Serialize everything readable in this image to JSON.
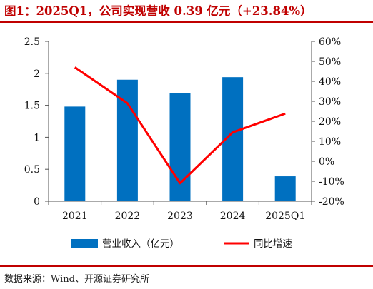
{
  "figure_title": "图1：2025Q1，公司实现营收 0.39 亿元（+23.84%）",
  "source_note": "数据来源：Wind、开源证券研究所",
  "colors": {
    "accent": "#c00000",
    "bar": "#0070c0",
    "line": "#ff0000"
  },
  "chart_data": {
    "type": "bar",
    "categories": [
      "2021",
      "2022",
      "2023",
      "2024",
      "2025Q1"
    ],
    "series": [
      {
        "name": "营业收入（亿元）",
        "type": "bar",
        "axis": "left",
        "values": [
          1.48,
          1.9,
          1.69,
          1.94,
          0.39
        ]
      },
      {
        "name": "同比增速",
        "type": "line",
        "axis": "right",
        "unit": "%",
        "values": [
          47.0,
          29.0,
          -11.0,
          14.5,
          23.84
        ]
      }
    ],
    "y_left": {
      "range": [
        0,
        2.5
      ],
      "ticks": [
        "0",
        "0.5",
        "1",
        "1.5",
        "2",
        "2.5"
      ]
    },
    "y_right": {
      "range": [
        -20,
        60
      ],
      "ticks": [
        "-20%",
        "-10%",
        "0%",
        "10%",
        "20%",
        "30%",
        "40%",
        "50%",
        "60%"
      ]
    },
    "legend": {
      "position": "bottom"
    },
    "grid": false
  }
}
